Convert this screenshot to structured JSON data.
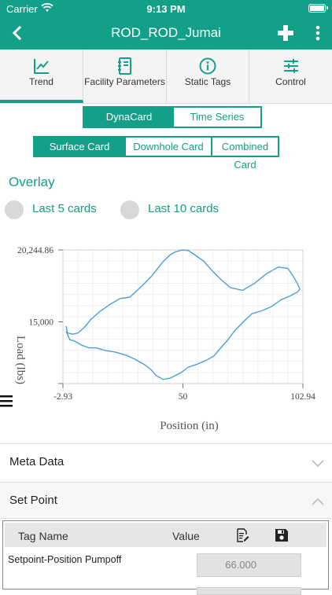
{
  "status": {
    "carrier": "Carrier",
    "time": "9:13 PM"
  },
  "nav": {
    "title": "ROD_ROD_Jumai"
  },
  "tabs": [
    {
      "label": "Trend",
      "icon": "chart-line-icon",
      "active": true
    },
    {
      "label": "Facility Parameters",
      "icon": "notebook-icon",
      "active": false
    },
    {
      "label": "Static Tags",
      "icon": "info-icon",
      "active": false
    },
    {
      "label": "Control",
      "icon": "sliders-icon",
      "active": false
    }
  ],
  "view_toggle": {
    "options": [
      "DynaCard",
      "Time Series"
    ],
    "selected": "DynaCard"
  },
  "card_toggle": {
    "options": [
      "Surface Card",
      "Downhole Card",
      "Combined Card"
    ],
    "selected": "Surface Card"
  },
  "overlay": {
    "title": "Overlay",
    "option1": "Last 5 cards",
    "option2": "Last 10 cards"
  },
  "chart_data": {
    "type": "line",
    "title": "",
    "xlabel": "Position (in)",
    "ylabel": "Load (lbs)",
    "xlim": [
      -2.93,
      102.94
    ],
    "ylim": [
      10500,
      20244.86
    ],
    "x_ticks": [
      "-2.93",
      "50",
      "102.94"
    ],
    "y_ticks": [
      "20,244.86",
      "15,000"
    ],
    "grid": true,
    "series_color": "#4a9fd9",
    "series": [
      {
        "x": [
          -1.5,
          -1.0,
          1.5,
          3.8,
          6.5,
          9.5,
          13.7,
          18.1,
          22.3,
          26.5,
          28.6,
          31.8,
          36.0,
          41.3,
          44.5,
          46.6,
          49.8,
          52.4,
          55.1,
          59.3,
          62.5,
          66.7,
          70.9,
          76.3,
          81.5,
          86.8,
          92.1,
          96.3,
          98.4,
          100.5,
          101.6,
          100.8,
          97.4,
          93.2,
          88.9,
          84.7,
          80.5,
          77.3,
          73.1,
          69.9,
          66.7,
          63.6,
          60.4,
          56.1,
          52.4,
          49.2,
          44.5,
          41.3,
          38.1,
          36.0,
          32.9,
          28.6,
          24.4,
          20.2,
          16.0,
          11.7,
          8.6,
          5.4,
          2.2,
          0.1,
          -1.5
        ],
        "y": [
          14700,
          14200,
          14100,
          14200,
          14600,
          15200,
          15800,
          16300,
          16700,
          16800,
          17100,
          17600,
          18300,
          19400,
          19900,
          20100,
          20244.86,
          20200,
          19900,
          19400,
          18800,
          18100,
          17500,
          17300,
          17800,
          18500,
          19000,
          18900,
          18400,
          17800,
          17400,
          17200,
          16900,
          16600,
          16100,
          15800,
          15600,
          15100,
          14400,
          13700,
          13100,
          12500,
          12200,
          11900,
          11700,
          11300,
          10900,
          10800,
          11100,
          11500,
          11900,
          12300,
          12600,
          12800,
          12900,
          13100,
          13100,
          13300,
          13600,
          13700,
          14300
        ]
      }
    ]
  },
  "sections": {
    "meta_data": "Meta Data",
    "set_point": "Set Point"
  },
  "setpoint_table": {
    "headers": [
      "Tag Name",
      "Value"
    ],
    "rows": [
      {
        "name": "Setpoint-Position Pumpoff",
        "value": "66.000"
      }
    ]
  },
  "colors": {
    "accent": "#13a088",
    "line": "#4a9fd9"
  }
}
